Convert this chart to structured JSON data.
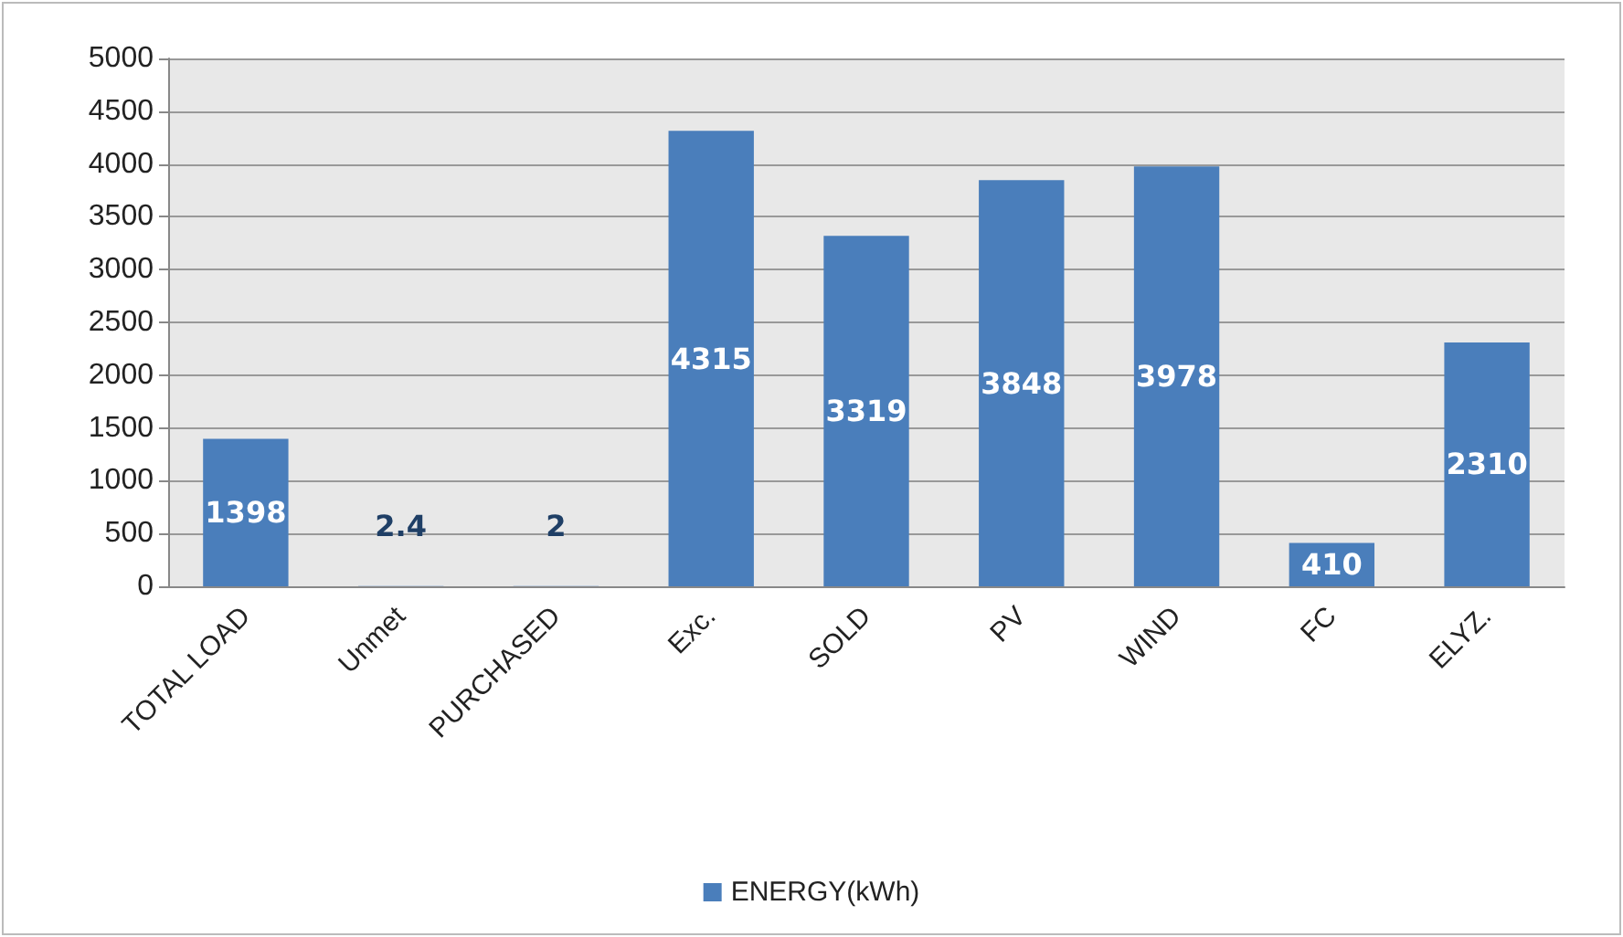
{
  "chart_data": {
    "type": "bar",
    "categories": [
      "TOTAL LOAD",
      "Unmet",
      "PURCHASED",
      "Exc.",
      "SOLD",
      "PV",
      "WIND",
      "FC",
      "ELYZ."
    ],
    "series": [
      {
        "name": "ENERGY(kWh)",
        "color": "#4a7ebb",
        "values": [
          1398,
          2.4,
          2,
          4315,
          3319,
          3848,
          3978,
          410,
          2310
        ]
      }
    ],
    "ylim": [
      0,
      5000
    ],
    "yticks": [
      0,
      500,
      1000,
      1500,
      2000,
      2500,
      3000,
      3500,
      4000,
      4500,
      5000
    ],
    "grid": "y",
    "legend": "bottom",
    "data_labels": true
  }
}
